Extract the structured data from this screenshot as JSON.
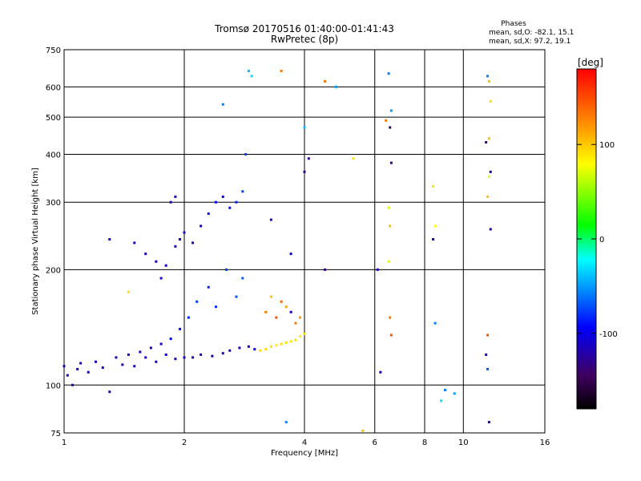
{
  "chart_data": {
    "type": "scatter",
    "title": "Tromsø 20170516 01:40:00-01:41:43",
    "subtitle": "RwPretec (8p)",
    "xlabel": "Frequency [MHz]",
    "ylabel": "Stationary phase Virtual Height [km]",
    "x_scale": "log",
    "y_scale": "log",
    "xlim": [
      1,
      16
    ],
    "ylim": [
      75,
      750
    ],
    "x_ticks": [
      1,
      2,
      4,
      6,
      8,
      10,
      16
    ],
    "y_ticks": [
      75,
      100,
      200,
      300,
      400,
      500,
      600,
      750
    ],
    "grid": true,
    "phase_info": {
      "heading": "Phases",
      "line1": "mean, sd,O: -82.1, 15.1",
      "line2": "mean, sd,X:  97.2, 19.1"
    },
    "colorbar": {
      "label": "[deg]",
      "range": [
        -180,
        180
      ],
      "ticks": [
        100,
        0,
        -100
      ],
      "colors": [
        "#ff0000",
        "#ffa000",
        "#ffff00",
        "#00ff00",
        "#00ffff",
        "#0000ff",
        "#400060",
        "#000000"
      ]
    },
    "points": [
      [
        1.0,
        112,
        -100
      ],
      [
        1.02,
        106,
        -100
      ],
      [
        1.05,
        100,
        -100
      ],
      [
        1.08,
        110,
        -100
      ],
      [
        1.1,
        114,
        -100
      ],
      [
        1.15,
        108,
        -100
      ],
      [
        1.2,
        115,
        -100
      ],
      [
        1.25,
        111,
        -100
      ],
      [
        1.3,
        96,
        -100
      ],
      [
        1.35,
        118,
        -100
      ],
      [
        1.4,
        113,
        -100
      ],
      [
        1.45,
        120,
        -100
      ],
      [
        1.5,
        112,
        -100
      ],
      [
        1.55,
        122,
        -100
      ],
      [
        1.6,
        118,
        -100
      ],
      [
        1.65,
        125,
        -100
      ],
      [
        1.7,
        115,
        -100
      ],
      [
        1.75,
        128,
        -100
      ],
      [
        1.8,
        120,
        -90
      ],
      [
        1.85,
        132,
        -80
      ],
      [
        1.9,
        117,
        -100
      ],
      [
        1.95,
        140,
        -75
      ],
      [
        2.0,
        118,
        -100
      ],
      [
        2.05,
        150,
        -70
      ],
      [
        2.1,
        118,
        -100
      ],
      [
        2.15,
        165,
        -60
      ],
      [
        2.2,
        120,
        -100
      ],
      [
        2.3,
        180,
        -70
      ],
      [
        2.35,
        119,
        -100
      ],
      [
        2.4,
        160,
        -65
      ],
      [
        2.5,
        121,
        -100
      ],
      [
        2.55,
        200,
        -60
      ],
      [
        2.6,
        123,
        -100
      ],
      [
        2.7,
        170,
        -55
      ],
      [
        2.75,
        125,
        -100
      ],
      [
        2.8,
        190,
        -50
      ],
      [
        2.9,
        126,
        -100
      ],
      [
        3.0,
        124,
        -95
      ],
      [
        3.1,
        123,
        120
      ],
      [
        3.2,
        124,
        120
      ],
      [
        3.3,
        126,
        120
      ],
      [
        3.4,
        127,
        115
      ],
      [
        3.5,
        128,
        120
      ],
      [
        3.6,
        129,
        120
      ],
      [
        3.7,
        130,
        118
      ],
      [
        3.8,
        131,
        120
      ],
      [
        3.9,
        134,
        115
      ],
      [
        4.0,
        136,
        120
      ],
      [
        3.2,
        155,
        150
      ],
      [
        3.4,
        150,
        160
      ],
      [
        3.6,
        160,
        140
      ],
      [
        3.8,
        145,
        150
      ],
      [
        3.3,
        170,
        130
      ],
      [
        3.5,
        165,
        155
      ],
      [
        3.7,
        155,
        -100
      ],
      [
        3.9,
        150,
        140
      ],
      [
        1.9,
        230,
        -100
      ],
      [
        1.95,
        240,
        -100
      ],
      [
        2.0,
        250,
        -100
      ],
      [
        2.1,
        235,
        -100
      ],
      [
        2.2,
        260,
        -90
      ],
      [
        2.3,
        280,
        -80
      ],
      [
        2.4,
        300,
        -85
      ],
      [
        2.5,
        310,
        -80
      ],
      [
        2.6,
        290,
        -75
      ],
      [
        2.7,
        300,
        -70
      ],
      [
        2.8,
        320,
        -60
      ],
      [
        2.85,
        400,
        -60
      ],
      [
        1.85,
        300,
        -100
      ],
      [
        1.9,
        310,
        -100
      ],
      [
        1.3,
        240,
        -100
      ],
      [
        1.5,
        235,
        -100
      ],
      [
        1.6,
        220,
        -100
      ],
      [
        1.7,
        210,
        -100
      ],
      [
        1.8,
        205,
        -100
      ],
      [
        1.75,
        190,
        -100
      ],
      [
        2.5,
        540,
        -40
      ],
      [
        2.9,
        660,
        -20
      ],
      [
        2.95,
        640,
        -10
      ],
      [
        3.5,
        660,
        150
      ],
      [
        4.5,
        620,
        150
      ],
      [
        4.8,
        600,
        -30
      ],
      [
        4.0,
        470,
        -20
      ],
      [
        4.1,
        390,
        -110
      ],
      [
        4.0,
        360,
        -120
      ],
      [
        5.3,
        390,
        120
      ],
      [
        6.5,
        650,
        -40
      ],
      [
        6.6,
        520,
        -30
      ],
      [
        6.55,
        470,
        -130
      ],
      [
        6.6,
        380,
        -120
      ],
      [
        6.5,
        290,
        100
      ],
      [
        6.55,
        260,
        130
      ],
      [
        6.5,
        210,
        100
      ],
      [
        6.55,
        150,
        150
      ],
      [
        6.6,
        135,
        160
      ],
      [
        6.4,
        490,
        150
      ],
      [
        6.1,
        200,
        -100
      ],
      [
        6.2,
        108,
        -100
      ],
      [
        8.4,
        330,
        120
      ],
      [
        8.5,
        260,
        110
      ],
      [
        8.4,
        240,
        -110
      ],
      [
        8.5,
        145,
        -40
      ],
      [
        9.0,
        97,
        -40
      ],
      [
        9.5,
        95,
        -30
      ],
      [
        8.8,
        91,
        -10
      ],
      [
        11.5,
        640,
        -40
      ],
      [
        11.6,
        620,
        130
      ],
      [
        11.7,
        550,
        120
      ],
      [
        11.6,
        440,
        130
      ],
      [
        11.4,
        430,
        -120
      ],
      [
        11.7,
        360,
        -110
      ],
      [
        11.6,
        350,
        100
      ],
      [
        11.5,
        310,
        130
      ],
      [
        11.7,
        255,
        -110
      ],
      [
        11.5,
        135,
        160
      ],
      [
        11.4,
        120,
        -100
      ],
      [
        11.5,
        110,
        -50
      ],
      [
        11.6,
        80,
        -110
      ],
      [
        1.45,
        175,
        120
      ],
      [
        3.6,
        80,
        -40
      ],
      [
        5.6,
        76,
        130
      ],
      [
        3.7,
        220,
        -90
      ],
      [
        4.5,
        200,
        -120
      ],
      [
        3.3,
        270,
        -100
      ]
    ]
  }
}
